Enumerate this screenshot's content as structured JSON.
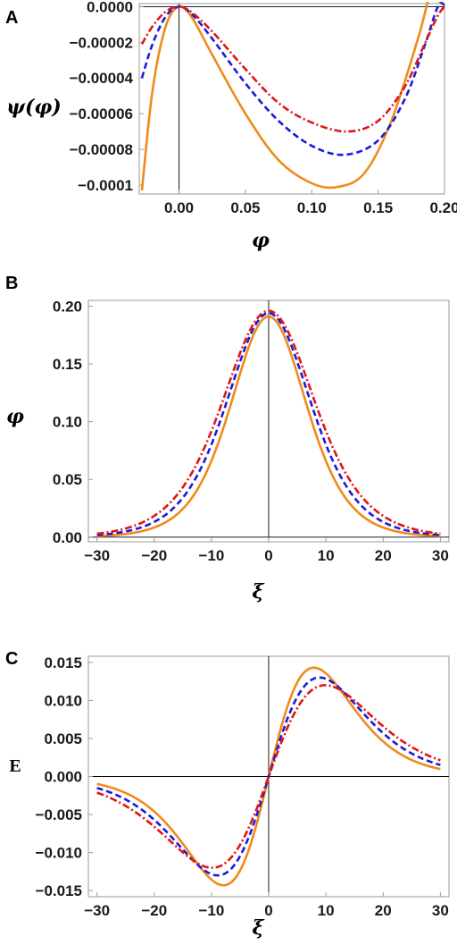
{
  "chart_data": [
    {
      "type": "line",
      "panel": "A",
      "xlabel": "φ",
      "ylabel": "ψ(φ)",
      "xlim": [
        -0.03,
        0.2
      ],
      "ylim": [
        -0.000105,
        1.7e-06
      ],
      "xticks": [
        0.0,
        0.05,
        0.1,
        0.15,
        0.2
      ],
      "xtick_labels": [
        "0.00",
        "0.05",
        "0.10",
        "0.15",
        "0.20"
      ],
      "yticks": [
        0.0,
        -2e-05,
        -4e-05,
        -6e-05,
        -8e-05,
        -0.0001
      ],
      "ytick_labels": [
        "0.0000",
        "−0.00002",
        "−0.00004",
        "−0.00006",
        "−0.00008",
        "−0.0001"
      ],
      "series": [
        {
          "color": "#f08a1c",
          "style": "solid",
          "x": [
            -0.028,
            -0.02,
            -0.01,
            0.0,
            0.01,
            0.025,
            0.05,
            0.075,
            0.1,
            0.12,
            0.14,
            0.16,
            0.18,
            0.19,
            0.197
          ],
          "y": [
            -0.000103,
            -4.7e-05,
            -1.1e-05,
            0.0,
            -6.5e-06,
            -2.7e-05,
            -6e-05,
            -8.6e-05,
            -9.9e-05,
            -0.000101,
            -9.3e-05,
            -6.4e-05,
            -1.8e-05,
            8e-06,
            1.7e-06
          ]
        },
        {
          "color": "#1a1adc",
          "style": "dashed",
          "x": [
            -0.028,
            -0.02,
            -0.01,
            0.0,
            0.01,
            0.025,
            0.05,
            0.075,
            0.1,
            0.125,
            0.15,
            0.17,
            0.185,
            0.195,
            0.2
          ],
          "y": [
            -4e-05,
            -2.1e-05,
            -5.5e-06,
            0.0,
            -4.5e-06,
            -1.8e-05,
            -4.3e-05,
            -6.4e-05,
            -7.8e-05,
            -8.3e-05,
            -7.5e-05,
            -5.2e-05,
            -2.2e-05,
            0.0,
            1e-06
          ]
        },
        {
          "color": "#e01515",
          "style": "dashdot",
          "x": [
            -0.028,
            -0.02,
            -0.01,
            0.0,
            0.01,
            0.025,
            0.05,
            0.075,
            0.1,
            0.127,
            0.15,
            0.17,
            0.185,
            0.195,
            0.2
          ],
          "y": [
            -2.1e-05,
            -1.1e-05,
            -2.8e-06,
            0.0,
            -3.5e-06,
            -1.4e-05,
            -3.5e-05,
            -5.4e-05,
            -6.5e-05,
            -7e-05,
            -6.4e-05,
            -4.5e-05,
            -2.1e-05,
            -5e-06,
            0.0
          ]
        }
      ]
    },
    {
      "type": "line",
      "panel": "B",
      "xlabel": "ξ",
      "ylabel": "φ",
      "xlim": [
        -31.5,
        31.5
      ],
      "ylim": [
        -0.004,
        0.205
      ],
      "xticks": [
        -30,
        -20,
        -10,
        0,
        10,
        20,
        30
      ],
      "xtick_labels": [
        "−30",
        "−20",
        "−10",
        "0",
        "10",
        "20",
        "30"
      ],
      "yticks": [
        0.0,
        0.05,
        0.1,
        0.15,
        0.2
      ],
      "ytick_labels": [
        "0.00",
        "0.05",
        "0.10",
        "0.15",
        "0.20"
      ],
      "series": [
        {
          "color": "#f08a1c",
          "style": "solid",
          "shape": "sech2",
          "amplitude": 0.191,
          "width": 8.9
        },
        {
          "color": "#1a1adc",
          "style": "dashed",
          "shape": "sech2",
          "amplitude": 0.194,
          "width": 9.9
        },
        {
          "color": "#e01515",
          "style": "dashdot",
          "shape": "sech2",
          "amplitude": 0.196,
          "width": 10.8
        }
      ]
    },
    {
      "type": "line",
      "panel": "C",
      "xlabel": "ξ",
      "ylabel": "E",
      "xlim": [
        -31.5,
        31.5
      ],
      "ylim": [
        -0.0158,
        0.0158
      ],
      "xticks": [
        -30,
        -20,
        -10,
        0,
        10,
        20,
        30
      ],
      "xtick_labels": [
        "−30",
        "−20",
        "−10",
        "0",
        "10",
        "20",
        "30"
      ],
      "yticks": [
        0.015,
        0.01,
        0.005,
        0.0,
        -0.005,
        -0.01,
        -0.015
      ],
      "ytick_labels": [
        "0.015",
        "0.010",
        "0.005",
        "0.000",
        "−0.005",
        "−0.010",
        "−0.015"
      ],
      "series": [
        {
          "color": "#f08a1c",
          "style": "solid",
          "shape": "sech2tanh",
          "amplitude": 0.0143,
          "width": 12.0
        },
        {
          "color": "#1a1adc",
          "style": "dashed",
          "shape": "sech2tanh",
          "amplitude": 0.013,
          "width": 13.5
        },
        {
          "color": "#e01515",
          "style": "dashdot",
          "shape": "sech2tanh",
          "amplitude": 0.012,
          "width": 15.0
        }
      ]
    }
  ]
}
